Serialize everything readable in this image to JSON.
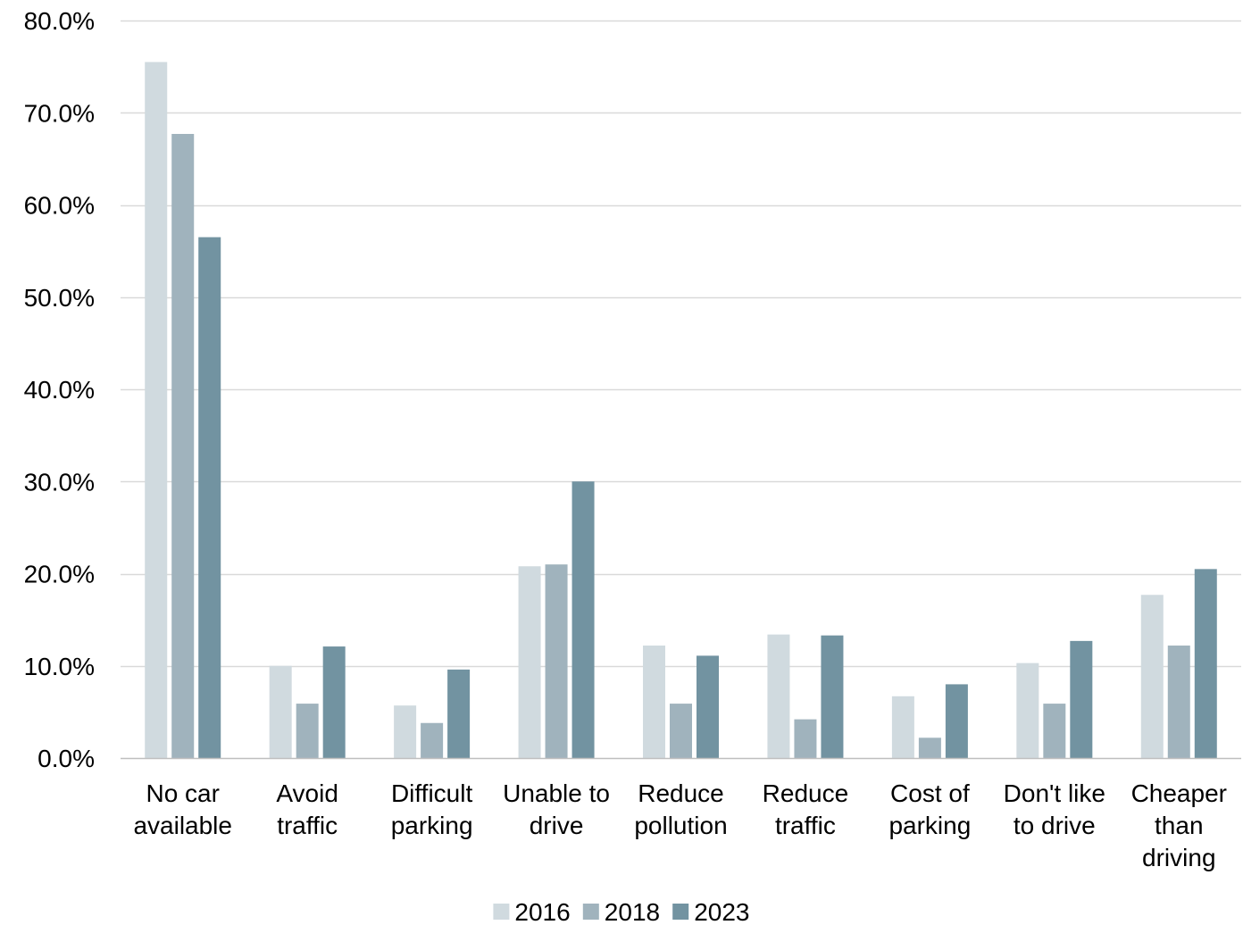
{
  "chart_data": {
    "type": "bar",
    "title": "",
    "xlabel": "",
    "ylabel": "",
    "categories": [
      [
        "No car",
        "available"
      ],
      [
        "Avoid",
        "traffic"
      ],
      [
        "Difficult",
        "parking"
      ],
      [
        "Unable to",
        "drive"
      ],
      [
        "Reduce",
        "pollution"
      ],
      [
        "Reduce",
        "traffic"
      ],
      [
        "Cost of",
        "parking"
      ],
      [
        "Don't like",
        "to drive"
      ],
      [
        "Cheaper",
        "than",
        "driving"
      ]
    ],
    "series": [
      {
        "name": "2016",
        "color": "#d0dadf",
        "values": [
          75.5,
          10.0,
          5.7,
          20.8,
          12.2,
          13.4,
          6.7,
          10.3,
          17.7
        ]
      },
      {
        "name": "2018",
        "color": "#a0b3bd",
        "values": [
          67.7,
          5.9,
          3.8,
          21.0,
          5.9,
          4.2,
          2.2,
          5.9,
          12.2
        ]
      },
      {
        "name": "2023",
        "color": "#7293a1",
        "values": [
          56.5,
          12.1,
          9.6,
          30.0,
          11.1,
          13.3,
          8.0,
          12.7,
          20.5
        ]
      }
    ],
    "ylim": [
      0,
      80
    ],
    "yticks": [
      0,
      10,
      20,
      30,
      40,
      50,
      60,
      70,
      80
    ],
    "ytick_labels": [
      "0.0%",
      "10.0%",
      "20.0%",
      "30.0%",
      "40.0%",
      "50.0%",
      "60.0%",
      "70.0%",
      "80.0%"
    ],
    "grid": true,
    "gridline_color": "#d9d9d9",
    "axis_color": "#bfbfbf",
    "legend_position": "bottom-center"
  }
}
